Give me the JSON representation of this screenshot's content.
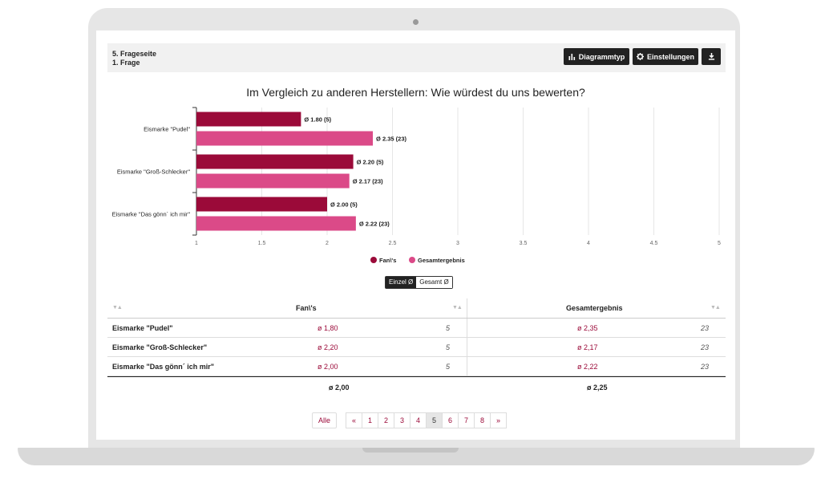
{
  "header": {
    "page_label": "5. Frageseite",
    "question_label": "1. Frage",
    "chart_type_button": "Diagrammtyp",
    "settings_button": "Einstellungen",
    "download_icon": "download-icon",
    "chart_type_icon": "bar-chart-icon",
    "settings_icon": "gear-icon"
  },
  "chart_title": "Im Vergleich zu anderen Herstellern: Wie würdest du uns bewerten?",
  "chart_data": {
    "type": "bar",
    "orientation": "horizontal",
    "title": "Im Vergleich zu anderen Herstellern: Wie würdest du uns bewerten?",
    "categories": [
      "Eismarke \"Pudel\"",
      "Eismarke \"Groß-Schlecker\"",
      "Eismarke \"Das gönn´ ich mir\""
    ],
    "series": [
      {
        "name": "Fan\\'s",
        "color": "#9b0a39",
        "values": [
          1.8,
          2.2,
          2.0
        ],
        "labels": [
          "Ø 1.80 (5)",
          "Ø 2.20 (5)",
          "Ø 2.00 (5)"
        ]
      },
      {
        "name": "Gesamtergebnis",
        "color": "#db4a88",
        "values": [
          2.35,
          2.17,
          2.22
        ],
        "labels": [
          "Ø 2.35 (23)",
          "Ø 2.17 (23)",
          "Ø 2.22 (23)"
        ]
      }
    ],
    "xlim": [
      1,
      5
    ],
    "xticks": [
      "1",
      "1.5",
      "2",
      "2.5",
      "3",
      "3.5",
      "4",
      "4.5",
      "5"
    ],
    "grid": true,
    "legend_position": "bottom"
  },
  "toggle": {
    "active": "Einzel Ø",
    "inactive": "Gesamt Ø"
  },
  "table": {
    "col_fan": "Fan\\'s",
    "col_ges": "Gesamtergebnis",
    "rows": [
      {
        "label": "Eismarke \"Pudel\"",
        "fan": "ø 1,80",
        "fan_n": "5",
        "ges": "ø 2,35",
        "ges_n": "23"
      },
      {
        "label": "Eismarke \"Groß-Schlecker\"",
        "fan": "ø 2,20",
        "fan_n": "5",
        "ges": "ø 2,17",
        "ges_n": "23"
      },
      {
        "label": "Eismarke \"Das gönn´ ich mir\"",
        "fan": "ø 2,00",
        "fan_n": "5",
        "ges": "ø 2,22",
        "ges_n": "23"
      }
    ],
    "total_fan": "ø 2,00",
    "total_ges": "ø 2,25"
  },
  "pagination": {
    "all": "Alle",
    "prev": "«",
    "next": "»",
    "pages": [
      "1",
      "2",
      "3",
      "4",
      "5",
      "6",
      "7",
      "8"
    ],
    "current": "5"
  }
}
